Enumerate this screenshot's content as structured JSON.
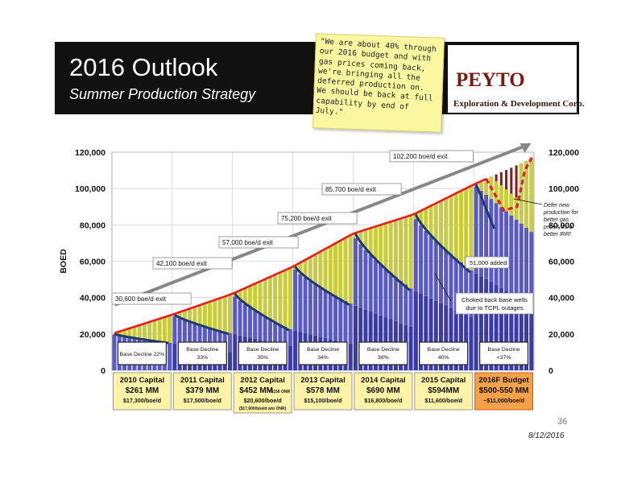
{
  "header": {
    "title": "2016 Outlook",
    "subtitle": "Summer Production Strategy"
  },
  "note": {
    "text": "\"We are about 40% through our 2016 budget and with gas prices coming back, we're bringing all the deferred production on. We should be back at full capability by end of July.\""
  },
  "logo": {
    "name": "PEYTO",
    "subtitle": "Exploration & Development Corp."
  },
  "footer": {
    "page_number": "36",
    "date": "8/12/2016"
  },
  "chart_data": {
    "type": "bar",
    "ylabel": "BOED",
    "ylim": [
      0,
      120000
    ],
    "yticks": [
      0,
      20000,
      40000,
      60000,
      80000,
      100000,
      120000
    ],
    "ytick_labels": [
      "0",
      "20,000",
      "40,000",
      "60,000",
      "80,000",
      "100,000",
      "120,000"
    ],
    "grid": true,
    "years": [
      {
        "capital": "2010 Capital",
        "amount": "$261 MM",
        "efficiency": "$17,300/boe/d",
        "extra": "",
        "base_decline": "Base Decline 22%",
        "exit_label": "30,600 boe/d exit",
        "exit": 30600,
        "start": 20000,
        "base_end": 15000
      },
      {
        "capital": "2011 Capital",
        "amount": "$379 MM",
        "efficiency": "$17,500/boe/d",
        "extra": "",
        "base_decline": "Base Decline\n33%",
        "exit_label": "42,100 boe/d exit",
        "exit": 42100,
        "start": 30600,
        "base_end": 20000
      },
      {
        "capital": "2012 Capital",
        "amount": "$452 MM",
        "amount_note": "+$156 ONR",
        "efficiency": "$20,600/boe/d",
        "extra": "($17,600/boe/d w/o ONR)",
        "base_decline": "Base Decline\n35%",
        "exit_label": "57,000 boe/d exit",
        "exit": 57000,
        "start": 42100,
        "base_end": 22000
      },
      {
        "capital": "2013 Capital",
        "amount": "$578 MM",
        "efficiency": "$15,100/boe/d",
        "extra": "",
        "base_decline": "Base Decline\n34%",
        "exit_label": "75,200 boe/d exit",
        "exit": 75200,
        "start": 57000,
        "base_end": 36000
      },
      {
        "capital": "2014 Capital",
        "amount": "$690 MM",
        "efficiency": "$16,800/boe/d",
        "extra": "",
        "base_decline": "Base Decline\n38%",
        "exit_label": "85,700 boe/d exit",
        "exit": 85700,
        "start": 75200,
        "base_end": 44000
      },
      {
        "capital": "2015 Capital",
        "amount": "$594MM",
        "efficiency": "$11,600/boe/d",
        "extra": "",
        "base_decline": "Base Decline\n40%",
        "exit_label": "102,200 boe/d exit",
        "exit": 102200,
        "start": 85700,
        "base_end": 54000
      },
      {
        "capital": "2016F Budget",
        "amount": "$500-550 MM",
        "efficiency": "~$11,000/boe/d",
        "extra": "",
        "base_decline": "Base Decline\n<37%",
        "exit_label": "",
        "exit": 117000,
        "start": 102200,
        "base_end": 75000
      }
    ],
    "annotations": {
      "defer": "Defer new production for better gas price? It's a better IRR!",
      "added": "51,000 added",
      "choked": "Choked back base wells due to TCPL outages"
    },
    "colors": {
      "base": "#3a3aa8",
      "new": "#c8cc3e",
      "production_line": "#e41e1e",
      "decline_line": "#1f3a6b",
      "deferred": "#8b1a1a",
      "trend_arrow": "#888888",
      "box_fill": "#fff3a8",
      "box_2016": "#f4a24a"
    }
  }
}
